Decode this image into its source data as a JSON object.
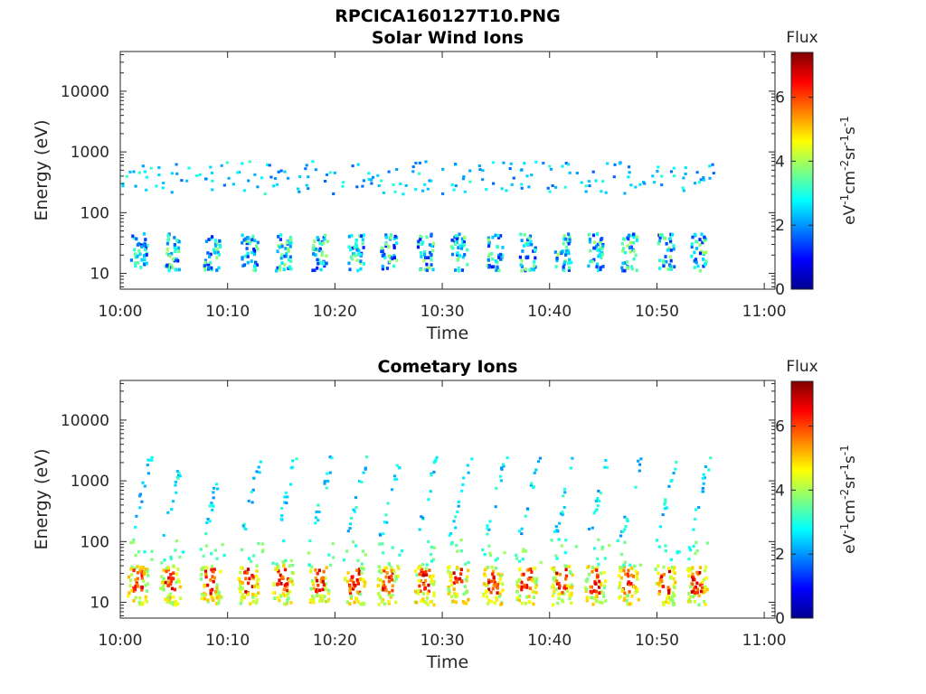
{
  "figure_title": "RPCICA160127T10.PNG",
  "chart_data": [
    {
      "type": "heatmap",
      "title": "Solar Wind Ions",
      "xlabel": "Time",
      "ylabel": "Energy (eV)",
      "x_ticks": [
        "10:00",
        "10:10",
        "10:20",
        "10:30",
        "10:40",
        "10:50",
        "11:00"
      ],
      "xlim_minutes": [
        0,
        61
      ],
      "y_ticks": [
        "10",
        "100",
        "1000",
        "10000"
      ],
      "y_scale": "log",
      "ylim": [
        5.5,
        45000
      ],
      "colorbar": {
        "title": "Flux",
        "label": "eV-1cm-2sr-1s-1",
        "ticks": [
          "0",
          "2",
          "4",
          "6"
        ],
        "range": [
          0,
          7.4
        ],
        "colormap": "jet"
      },
      "data_description": {
        "low_energy_band_eV": [
          10,
          45
        ],
        "low_energy_flux_range": [
          1,
          4
        ],
        "high_energy_band_eV": [
          200,
          700
        ],
        "high_energy_flux_range": [
          1.5,
          3
        ],
        "burst_minutes": [
          1.5,
          4.5,
          8.3,
          11.8,
          15.0,
          18.4,
          21.7,
          24.8,
          28.2,
          31.3,
          34.6,
          37.7,
          41.0,
          44.1,
          47.2,
          50.6,
          53.6
        ],
        "data_end_minute": 54.5
      }
    },
    {
      "type": "heatmap",
      "title": "Cometary Ions",
      "xlabel": "Time",
      "ylabel": "Energy (eV)",
      "x_ticks": [
        "10:00",
        "10:10",
        "10:20",
        "10:30",
        "10:40",
        "10:50",
        "11:00"
      ],
      "xlim_minutes": [
        0,
        61
      ],
      "y_ticks": [
        "10",
        "100",
        "1000",
        "10000"
      ],
      "y_scale": "log",
      "ylim": [
        5.5,
        45000
      ],
      "colorbar": {
        "title": "Flux",
        "label": "eV-1cm-2sr-1s-1",
        "ticks": [
          "0",
          "2",
          "4",
          "6"
        ],
        "range": [
          0,
          7.4
        ],
        "colormap": "jet"
      },
      "data_description": {
        "low_energy_band_eV": [
          8,
          40
        ],
        "low_energy_flux_range": [
          4,
          7
        ],
        "dispersion_tracks_eV": [
          100,
          2500
        ],
        "dispersion_flux_range": [
          1.8,
          3.2
        ],
        "burst_minutes": [
          1.5,
          4.5,
          8.3,
          11.8,
          15.0,
          18.4,
          21.7,
          24.8,
          28.2,
          31.3,
          34.6,
          37.7,
          41.0,
          44.1,
          47.2,
          50.6,
          53.6
        ],
        "data_end_minute": 54.5
      }
    }
  ]
}
